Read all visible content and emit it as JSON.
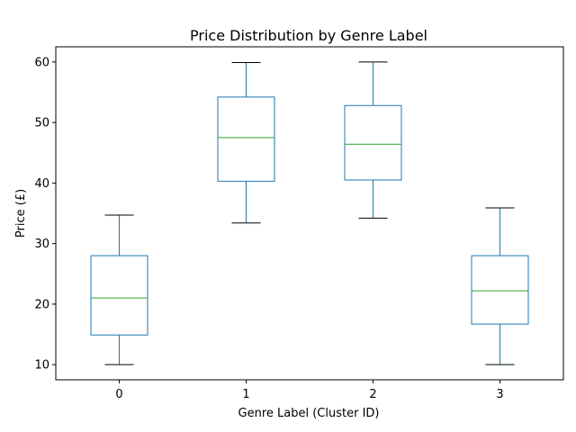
{
  "chart_data": {
    "type": "box",
    "title": "Price Distribution by Genre Label",
    "xlabel": "Genre Label (Cluster ID)",
    "ylabel": "Price (£)",
    "categories": [
      "0",
      "1",
      "2",
      "3"
    ],
    "boxes": [
      {
        "category": "0",
        "whisker_low": 10.0,
        "q1": 14.9,
        "median": 21.0,
        "q3": 28.0,
        "whisker_high": 34.7
      },
      {
        "category": "1",
        "whisker_low": 33.4,
        "q1": 40.3,
        "median": 47.5,
        "q3": 54.2,
        "whisker_high": 59.9
      },
      {
        "category": "2",
        "whisker_low": 34.2,
        "q1": 40.5,
        "median": 46.4,
        "q3": 52.8,
        "whisker_high": 60.0
      },
      {
        "category": "3",
        "whisker_low": 10.0,
        "q1": 16.7,
        "median": 22.2,
        "q3": 28.0,
        "whisker_high": 35.9
      }
    ],
    "ylim": [
      7.5,
      62.5
    ],
    "yticks": [
      10,
      20,
      30,
      40,
      50,
      60
    ],
    "grid": false,
    "colors": {
      "box": "#1f77b4",
      "median": "#2ca02c",
      "whisker_cap": "#000000"
    }
  }
}
